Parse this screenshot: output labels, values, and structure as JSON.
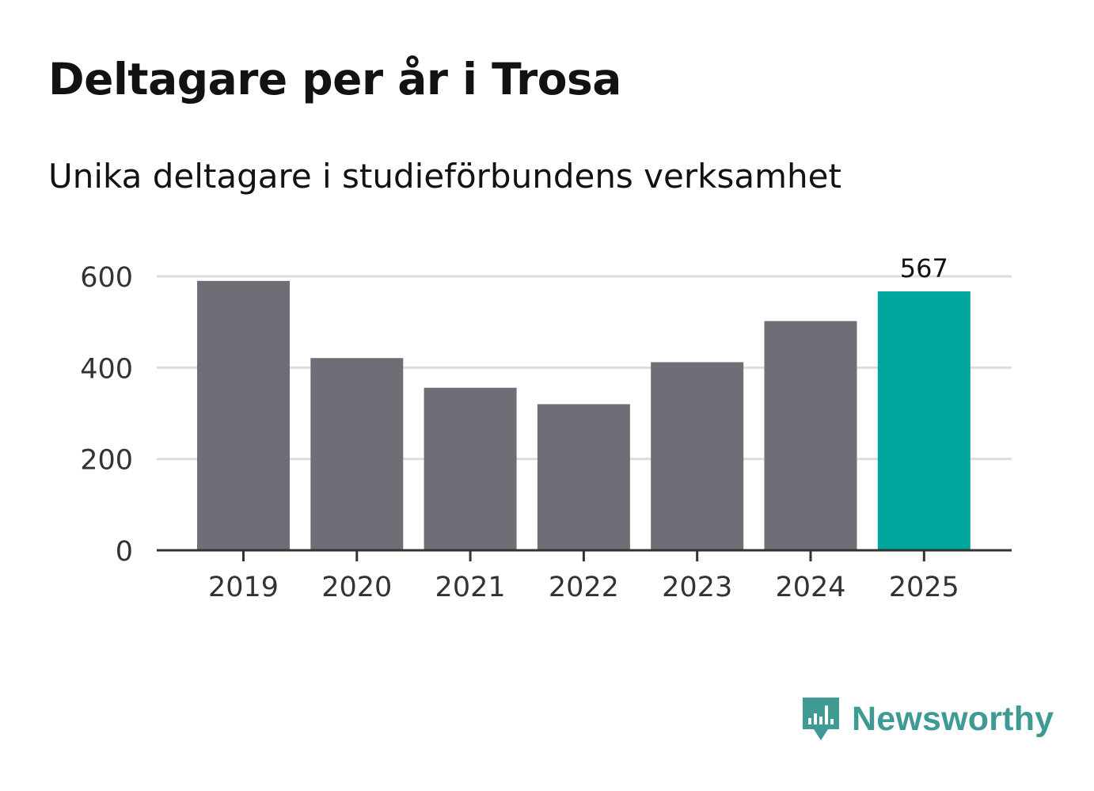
{
  "header": {
    "title": "Deltagare per år i Trosa",
    "subtitle": "Unika deltagare i studieförbundens verksamhet"
  },
  "chart_data": {
    "type": "bar",
    "title": "Deltagare per år i Trosa",
    "subtitle": "Unika deltagare i studieförbundens verksamhet",
    "xlabel": "",
    "ylabel": "",
    "categories": [
      "2019",
      "2020",
      "2021",
      "2022",
      "2023",
      "2024",
      "2025"
    ],
    "values": [
      590,
      421,
      356,
      320,
      412,
      502,
      567
    ],
    "ylim": [
      0,
      600
    ],
    "yticks": [
      0,
      200,
      400,
      600
    ],
    "grid": true,
    "highlight_index": 6,
    "labels": [
      null,
      null,
      null,
      null,
      null,
      null,
      "567"
    ],
    "colors": {
      "bar": "#6f6e76",
      "highlight": "#00a59b",
      "grid": "#dddddd",
      "axis": "#333333",
      "tick_text": "#333333",
      "label_text": "#111111"
    }
  },
  "branding": {
    "name": "Newsworthy",
    "logo_icon": "newsworthy-chat-bars-icon",
    "color": "#3f9a93"
  }
}
